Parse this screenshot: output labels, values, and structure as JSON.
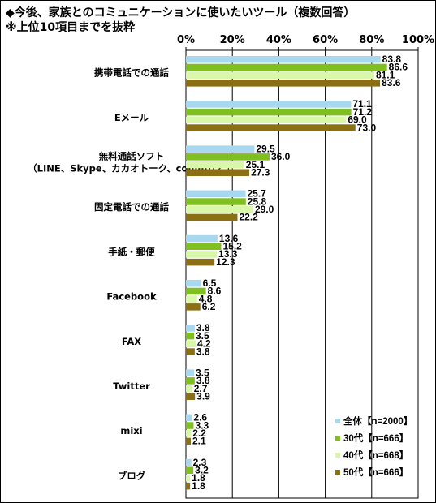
{
  "title_line1": "◆今後、家族とのコミュニケーションに使いたいツール（複数回答）",
  "title_line2": "※上位10項目までを抜粋",
  "chart_data": {
    "type": "bar",
    "orientation": "horizontal",
    "xlim": [
      0,
      100
    ],
    "tick_labels": [
      "0%",
      "20%",
      "40%",
      "60%",
      "80%",
      "100%"
    ],
    "categories": [
      [
        "携帯電話での通話"
      ],
      [
        "Eメール"
      ],
      [
        "無料通話ソフト",
        "（LINE、Skype、カカオトーク、commなど）"
      ],
      [
        "固定電話での通話"
      ],
      [
        "手紙・郵便"
      ],
      [
        "Facebook"
      ],
      [
        "FAX"
      ],
      [
        "Twitter"
      ],
      [
        "mixi"
      ],
      [
        "ブログ"
      ]
    ],
    "series": [
      {
        "name": "全体【n=2000】",
        "color": "#a8d8f0",
        "values": [
          83.8,
          71.1,
          29.5,
          25.7,
          13.6,
          6.5,
          3.8,
          3.5,
          2.6,
          2.3
        ]
      },
      {
        "name": "30代【n=666】",
        "color": "#7fbf1f",
        "values": [
          86.6,
          71.2,
          36.0,
          25.8,
          15.2,
          8.6,
          3.5,
          3.8,
          3.3,
          3.2
        ]
      },
      {
        "name": "40代【n=668】",
        "color": "#d9f7a8",
        "values": [
          81.1,
          69.0,
          25.1,
          29.0,
          13.3,
          4.8,
          4.2,
          2.7,
          2.2,
          1.8
        ]
      },
      {
        "name": "50代【n=666】",
        "color": "#8a6f14",
        "values": [
          83.6,
          73.0,
          27.3,
          22.2,
          12.3,
          6.2,
          3.8,
          3.9,
          2.1,
          1.8
        ]
      }
    ],
    "value_labels": [
      [
        "83.8",
        "71.1",
        "29.5",
        "25.7",
        "13.6",
        "6.5",
        "3.8",
        "3.5",
        "2.6",
        "2.3"
      ],
      [
        "86.6",
        "71.2",
        "36.0",
        "25.8",
        "15.2",
        "8.6",
        "3.5",
        "3.8",
        "3.3",
        "3.2"
      ],
      [
        "81.1",
        "69.0",
        "25.1",
        "29.0",
        "13.3",
        "4.8",
        "4.2",
        "2.7",
        "2.2",
        "1.8"
      ],
      [
        "83.6",
        "73.0",
        "27.3",
        "22.2",
        "12.3",
        "6.2",
        "3.8",
        "3.9",
        "2.1",
        "1.8"
      ]
    ],
    "legend_position": "bottom-right",
    "grid": true
  }
}
